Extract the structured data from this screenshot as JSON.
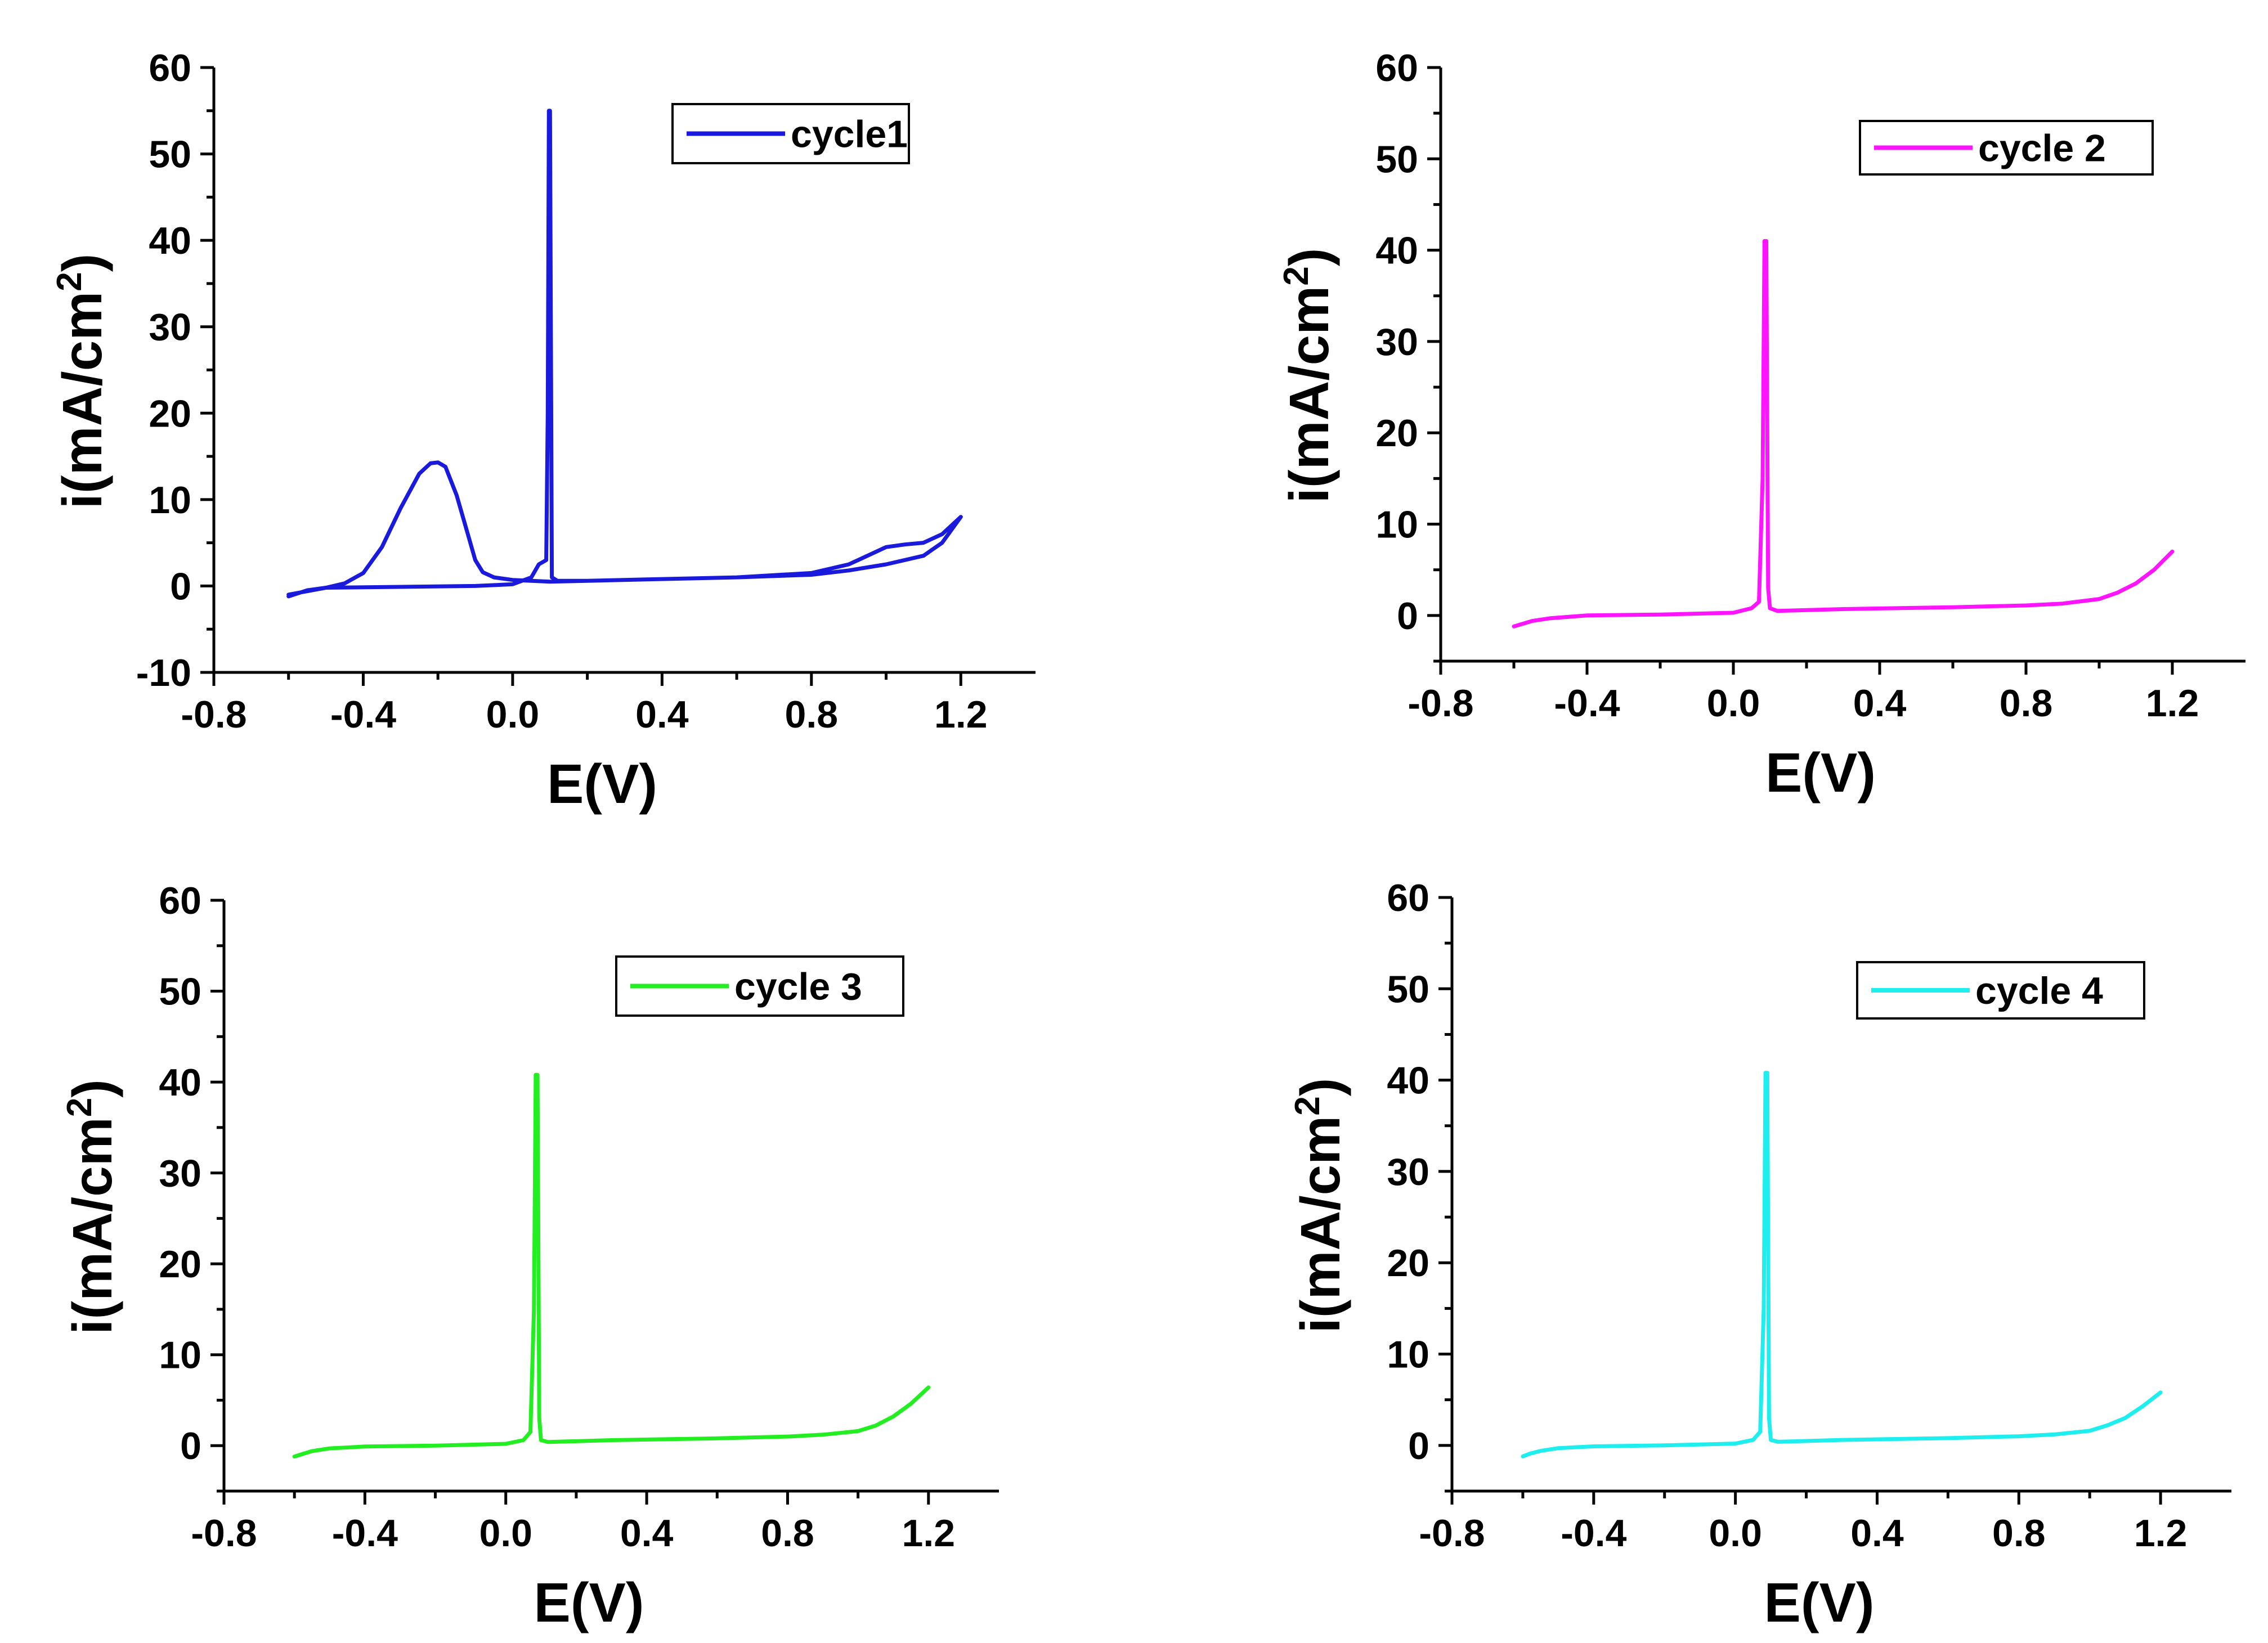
{
  "colors": {
    "cycle1": "#1a1adc",
    "cycle2": "#ff14ff",
    "cycle3": "#22ee22",
    "cycle4": "#1eeeee"
  },
  "chart_data": [
    {
      "type": "line",
      "xlabel": "E(V)",
      "ylabel": "i(mA/cm",
      "ylabel_sup": "2",
      "ylabel_close": ")",
      "xlim": [
        -0.8,
        1.4
      ],
      "ylim": [
        -10,
        60
      ],
      "xticks": [
        -0.8,
        -0.4,
        0.0,
        0.4,
        0.8,
        1.2
      ],
      "xtick_labels": [
        "-0.8",
        "-0.4",
        "0.0",
        "0.4",
        "0.8",
        "1.2"
      ],
      "yticks": [
        -10,
        0,
        10,
        20,
        30,
        40,
        50,
        60
      ],
      "ytick_labels": [
        "-10",
        "0",
        "10",
        "20",
        "30",
        "40",
        "50",
        "60"
      ],
      "legend": {
        "label": "cycle1",
        "position": "top-right"
      },
      "series": [
        {
          "name": "cycle1",
          "color_key": "cycle1",
          "x": [
            -0.6,
            -0.55,
            -0.5,
            -0.45,
            -0.4,
            -0.35,
            -0.3,
            -0.25,
            -0.22,
            -0.2,
            -0.18,
            -0.15,
            -0.12,
            -0.1,
            -0.08,
            -0.05,
            0.0,
            0.05,
            0.1,
            0.2,
            0.4,
            0.6,
            0.8,
            0.9,
            0.95,
            1.0,
            1.05,
            1.1,
            1.15,
            1.2,
            1.15,
            1.1,
            1.0,
            0.9,
            0.8,
            0.6,
            0.4,
            0.2,
            0.12,
            0.105,
            0.1,
            0.097,
            0.094,
            0.09,
            0.07,
            0.05,
            0.0,
            -0.1,
            -0.3,
            -0.5,
            -0.6
          ],
          "y": [
            -1.2,
            -0.5,
            -0.2,
            0.3,
            1.5,
            4.5,
            9.0,
            13.0,
            14.2,
            14.3,
            13.8,
            10.5,
            6.0,
            3.0,
            1.6,
            1.0,
            0.7,
            0.6,
            0.5,
            0.6,
            0.8,
            1.0,
            1.5,
            2.5,
            3.5,
            4.5,
            4.8,
            5.0,
            6.0,
            8.0,
            5.0,
            3.5,
            2.5,
            1.8,
            1.3,
            1.0,
            0.8,
            0.6,
            0.6,
            1.0,
            55.0,
            55.0,
            20.0,
            3.0,
            2.5,
            1.0,
            0.2,
            0.0,
            -0.1,
            -0.2,
            -1.0
          ]
        }
      ]
    },
    {
      "type": "line",
      "xlabel": "E(V)",
      "ylabel": "i(mA/cm",
      "ylabel_sup": "2",
      "ylabel_close": ")",
      "xlim": [
        -0.8,
        1.4
      ],
      "ylim": [
        -5,
        60
      ],
      "xticks": [
        -0.8,
        -0.4,
        0.0,
        0.4,
        0.8,
        1.2
      ],
      "xtick_labels": [
        "-0.8",
        "-0.4",
        "0.0",
        "0.4",
        "0.8",
        "1.2"
      ],
      "yticks": [
        0,
        10,
        20,
        30,
        40,
        50,
        60
      ],
      "ytick_labels": [
        "0",
        "10",
        "20",
        "30",
        "40",
        "50",
        "60"
      ],
      "legend": {
        "label": "cycle 2",
        "position": "top-right"
      },
      "series": [
        {
          "name": "cycle 2",
          "color_key": "cycle2",
          "x": [
            -0.6,
            -0.55,
            -0.5,
            -0.4,
            -0.2,
            0.0,
            0.05,
            0.07,
            0.08,
            0.085,
            0.09,
            0.095,
            0.1,
            0.12,
            0.3,
            0.6,
            0.8,
            0.9,
            1.0,
            1.05,
            1.1,
            1.15,
            1.2
          ],
          "y": [
            -1.2,
            -0.6,
            -0.3,
            0.0,
            0.1,
            0.3,
            0.8,
            1.5,
            15.0,
            41.0,
            41.0,
            3.0,
            0.8,
            0.5,
            0.7,
            0.9,
            1.1,
            1.3,
            1.8,
            2.5,
            3.5,
            5.0,
            7.0
          ]
        }
      ]
    },
    {
      "type": "line",
      "xlabel": "E(V)",
      "ylabel": "i(mA/cm",
      "ylabel_sup": "2",
      "ylabel_close": ")",
      "xlim": [
        -0.8,
        1.4
      ],
      "ylim": [
        -5,
        60
      ],
      "xticks": [
        -0.8,
        -0.4,
        0.0,
        0.4,
        0.8,
        1.2
      ],
      "xtick_labels": [
        "-0.8",
        "-0.4",
        "0.0",
        "0.4",
        "0.8",
        "1.2"
      ],
      "yticks": [
        0,
        10,
        20,
        30,
        40,
        50,
        60
      ],
      "ytick_labels": [
        "0",
        "10",
        "20",
        "30",
        "40",
        "50",
        "60"
      ],
      "legend": {
        "label": "cycle 3",
        "position": "top-right"
      },
      "series": [
        {
          "name": "cycle 3",
          "color_key": "cycle3",
          "x": [
            -0.6,
            -0.55,
            -0.5,
            -0.4,
            -0.2,
            0.0,
            0.05,
            0.07,
            0.08,
            0.085,
            0.09,
            0.095,
            0.1,
            0.12,
            0.3,
            0.6,
            0.8,
            0.9,
            1.0,
            1.05,
            1.1,
            1.15,
            1.2
          ],
          "y": [
            -1.2,
            -0.6,
            -0.3,
            -0.1,
            0.0,
            0.2,
            0.6,
            1.5,
            15.0,
            40.8,
            40.8,
            3.0,
            0.6,
            0.4,
            0.6,
            0.8,
            1.0,
            1.2,
            1.6,
            2.2,
            3.2,
            4.6,
            6.4
          ]
        }
      ]
    },
    {
      "type": "line",
      "xlabel": "E(V)",
      "ylabel": "i(mA/cm",
      "ylabel_sup": "2",
      "ylabel_close": ")",
      "xlim": [
        -0.8,
        1.4
      ],
      "ylim": [
        -5,
        60
      ],
      "xticks": [
        -0.8,
        -0.4,
        0.0,
        0.4,
        0.8,
        1.2
      ],
      "xtick_labels": [
        "-0.8",
        "-0.4",
        "0.0",
        "0.4",
        "0.8",
        "1.2"
      ],
      "yticks": [
        0,
        10,
        20,
        30,
        40,
        50,
        60
      ],
      "ytick_labels": [
        "0",
        "10",
        "20",
        "30",
        "40",
        "50",
        "60"
      ],
      "legend": {
        "label": "cycle 4",
        "position": "top-right"
      },
      "series": [
        {
          "name": "cycle 4",
          "color_key": "cycle4",
          "x": [
            -0.6,
            -0.58,
            -0.55,
            -0.5,
            -0.4,
            -0.2,
            0.0,
            0.05,
            0.07,
            0.08,
            0.085,
            0.09,
            0.095,
            0.1,
            0.12,
            0.3,
            0.6,
            0.8,
            0.9,
            1.0,
            1.05,
            1.1,
            1.15,
            1.2
          ],
          "y": [
            -1.2,
            -0.9,
            -0.6,
            -0.3,
            -0.1,
            0.0,
            0.2,
            0.6,
            1.5,
            15.0,
            40.8,
            40.8,
            3.0,
            0.6,
            0.4,
            0.6,
            0.8,
            1.0,
            1.2,
            1.6,
            2.2,
            3.0,
            4.3,
            5.8
          ]
        }
      ]
    }
  ]
}
